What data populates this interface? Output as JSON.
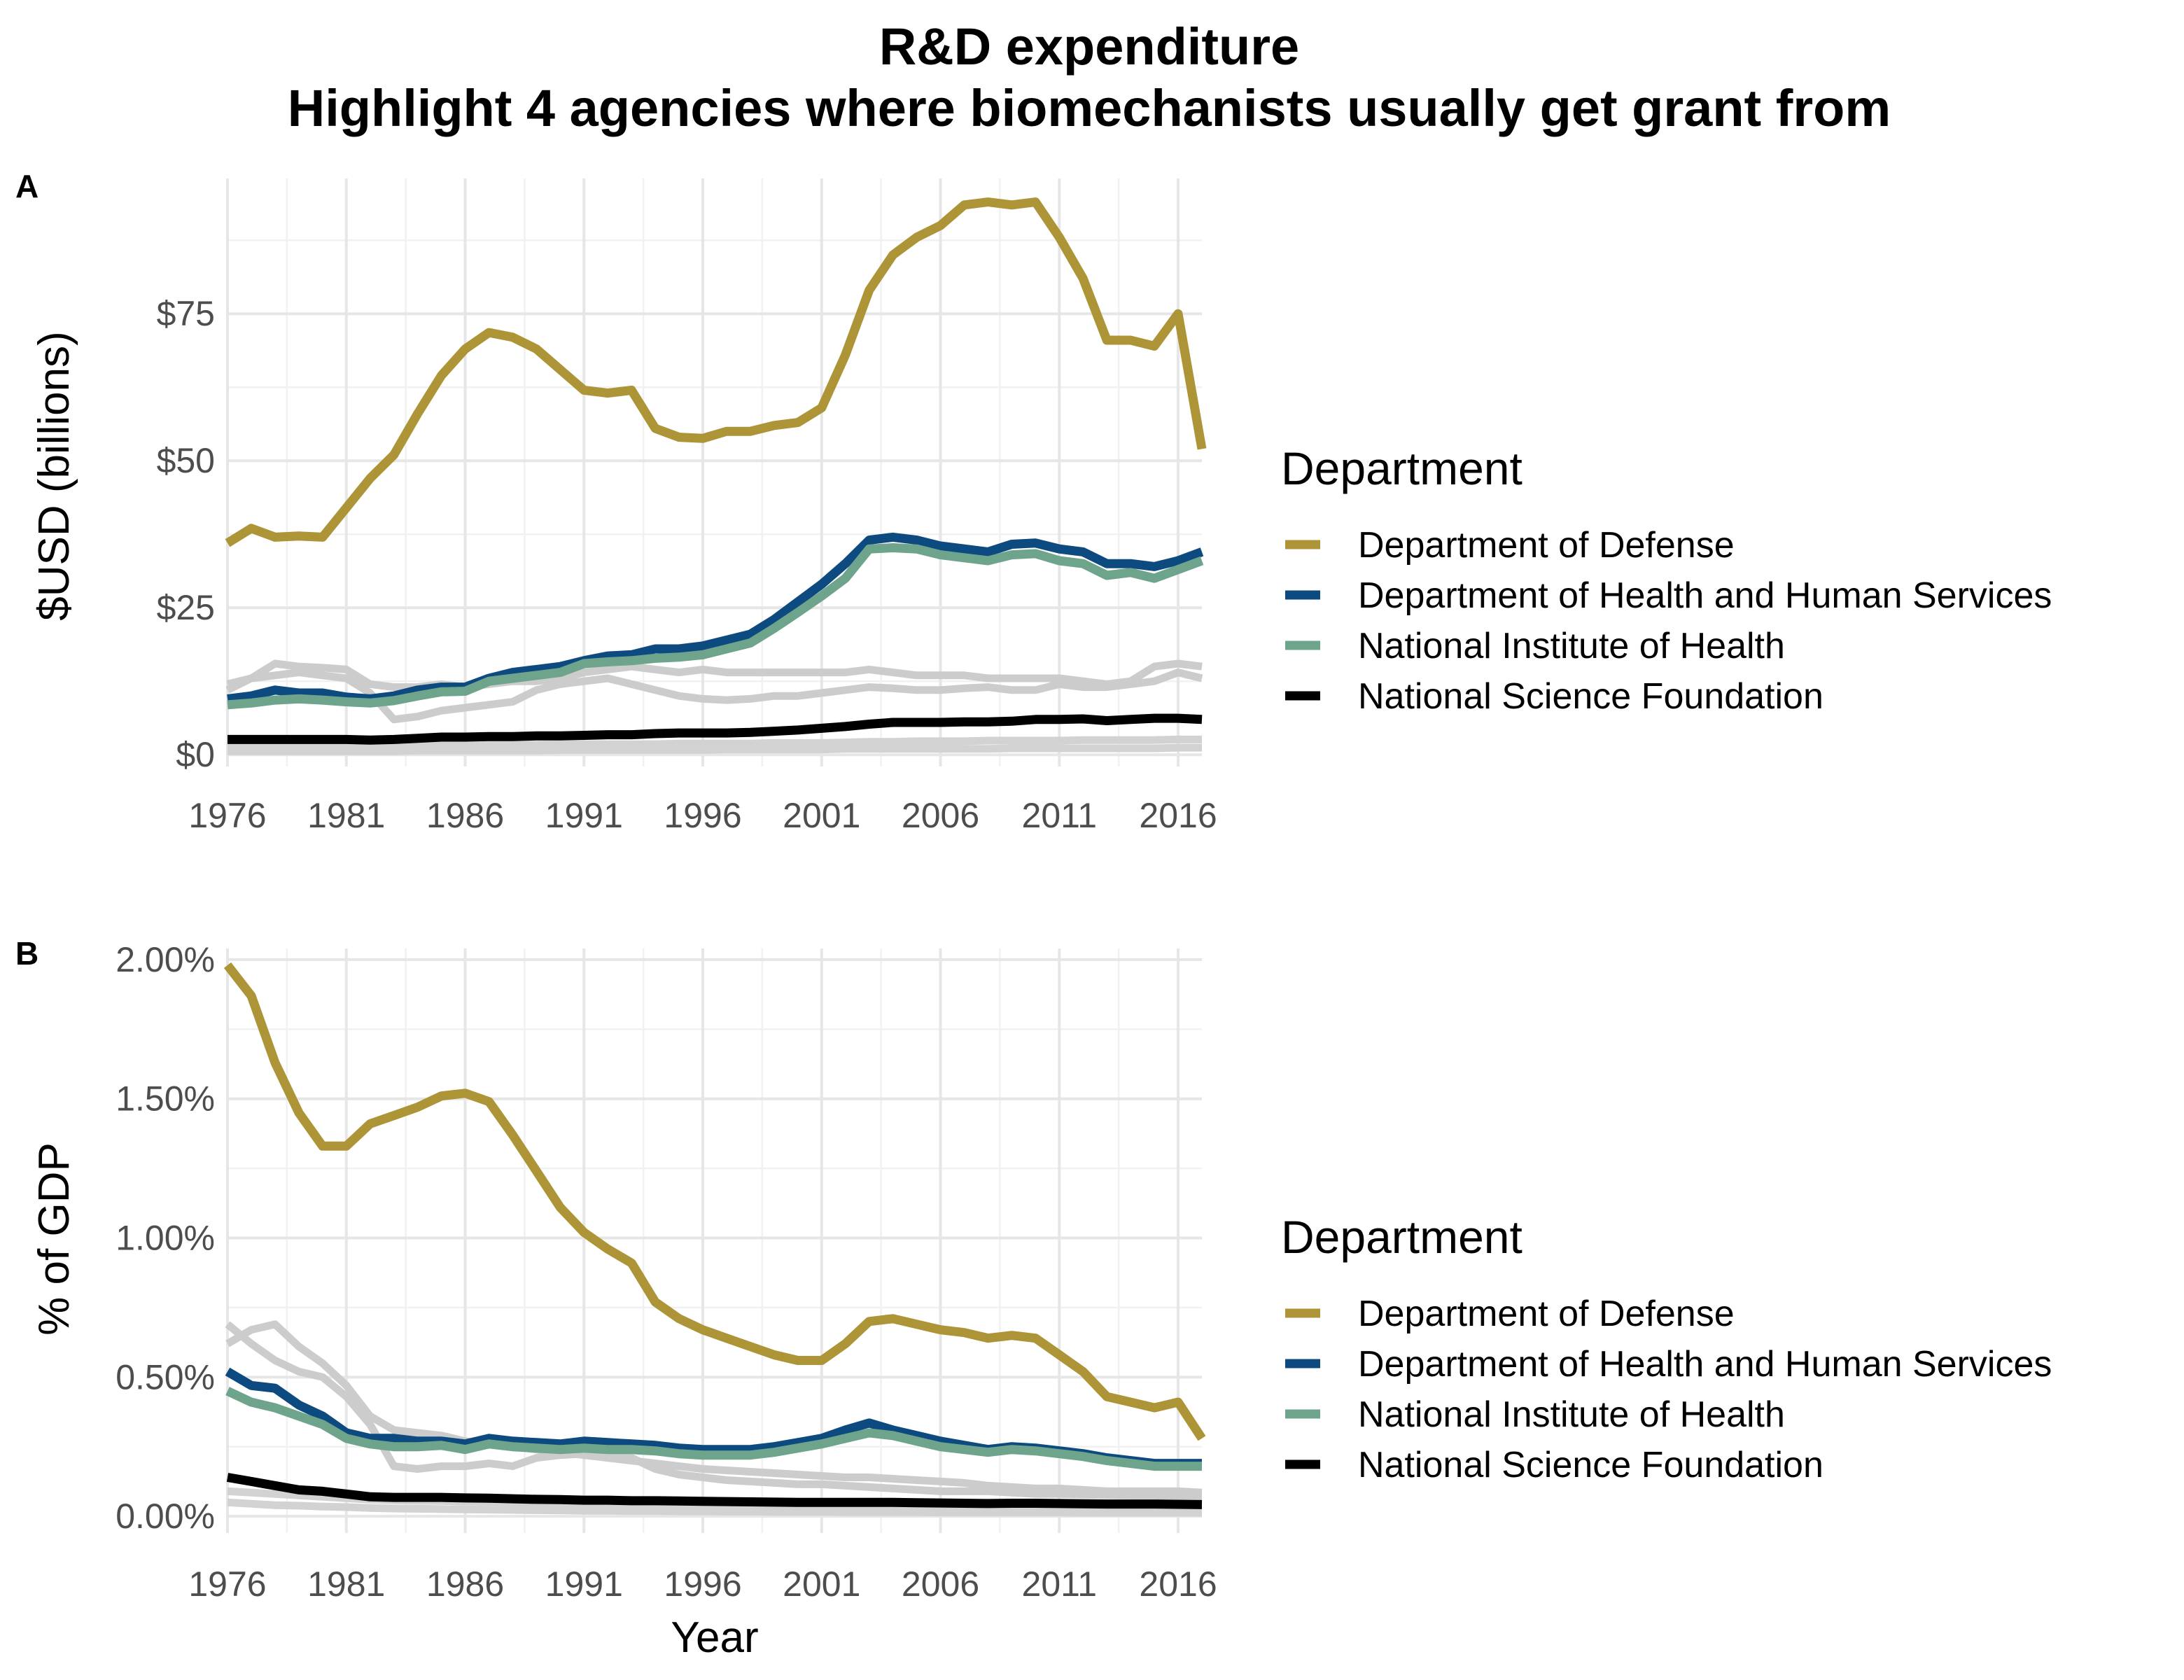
{
  "title": "R&D expenditure",
  "subtitle": "Highlight 4 agencies where biomechanists usually get grant from",
  "chart_data": [
    {
      "panel_tag": "A",
      "type": "line",
      "xlabel": "",
      "ylabel": "$USD (billions)",
      "xlim": [
        1976,
        2017
      ],
      "ylim": [
        -2,
        98
      ],
      "xticks": [
        1976,
        1981,
        1986,
        1991,
        1996,
        2001,
        2006,
        2011,
        2016
      ],
      "yticks": [
        0,
        25,
        50,
        75
      ],
      "yticklabels": [
        "$0",
        "$25",
        "$50",
        "$75"
      ],
      "legend_title": "Department",
      "legend_position": "right",
      "grid": true,
      "x": [
        1976,
        1977,
        1978,
        1979,
        1980,
        1981,
        1982,
        1983,
        1984,
        1985,
        1986,
        1987,
        1988,
        1989,
        1990,
        1991,
        1992,
        1993,
        1994,
        1995,
        1996,
        1997,
        1998,
        1999,
        2000,
        2001,
        2002,
        2003,
        2004,
        2005,
        2006,
        2007,
        2008,
        2009,
        2010,
        2011,
        2012,
        2013,
        2014,
        2015,
        2016,
        2017
      ],
      "series": [
        {
          "name": "Department of Defense",
          "color": "#AD9436",
          "highlight": true,
          "values": [
            36,
            38.5,
            37,
            37.2,
            37,
            42,
            47,
            51,
            58,
            64.5,
            69,
            71.8,
            71,
            69,
            65.5,
            62,
            61.5,
            62,
            55.5,
            54,
            53.8,
            55,
            55,
            56,
            56.5,
            59,
            68,
            79,
            85,
            88,
            90,
            93.5,
            94,
            93.5,
            94,
            88,
            81,
            70.5,
            70.5,
            69.5,
            75,
            52
          ]
        },
        {
          "name": "Department of Health and Human Services",
          "color": "#0C4A7F",
          "highlight": true,
          "values": [
            9.5,
            10,
            11,
            10.5,
            10.5,
            9.8,
            9.5,
            10,
            11,
            11.5,
            11.5,
            13,
            14,
            14.5,
            15,
            16,
            16.8,
            17,
            18,
            18,
            18.5,
            19.5,
            20.5,
            23,
            26,
            29,
            32.5,
            36.5,
            37,
            36.5,
            35.5,
            35,
            34.5,
            35.8,
            36,
            35,
            34.5,
            32.5,
            32.5,
            32,
            33,
            34.5
          ]
        },
        {
          "name": "National Institute of Health",
          "color": "#6FA48C",
          "highlight": true,
          "values": [
            8.5,
            8.8,
            9.3,
            9.5,
            9.3,
            9,
            8.8,
            9.2,
            10,
            10.7,
            10.8,
            12.5,
            13,
            13.5,
            14,
            15.5,
            15.8,
            16,
            16.4,
            16.6,
            17,
            18,
            19,
            21.5,
            24.2,
            27,
            30,
            35,
            35.2,
            35,
            34,
            33.5,
            33,
            34,
            34.2,
            33,
            32.5,
            30.5,
            31,
            30,
            31.5,
            33
          ]
        },
        {
          "name": "National Science Foundation",
          "color": "#000000",
          "highlight": true,
          "values": [
            2.6,
            2.6,
            2.6,
            2.6,
            2.6,
            2.6,
            2.5,
            2.6,
            2.8,
            3,
            3,
            3.1,
            3.1,
            3.2,
            3.2,
            3.3,
            3.4,
            3.4,
            3.6,
            3.7,
            3.7,
            3.7,
            3.8,
            4,
            4.2,
            4.5,
            4.8,
            5.2,
            5.5,
            5.5,
            5.5,
            5.6,
            5.6,
            5.7,
            6,
            6,
            6.1,
            5.8,
            6,
            6.2,
            6.2,
            6
          ]
        },
        {
          "name": "",
          "color": "#cccccc",
          "highlight": false,
          "values": [
            11,
            13,
            15.5,
            15,
            14.8,
            14.5,
            12,
            11.5,
            11.5,
            12,
            11.5,
            12,
            12.5,
            12.5,
            13,
            14,
            14.5,
            15,
            14.5,
            14,
            14.5,
            14,
            14,
            14,
            14,
            14,
            14,
            14.5,
            14,
            13.5,
            13.5,
            13.5,
            13,
            13,
            13,
            13,
            12.5,
            12,
            12.5,
            15,
            15.5,
            15
          ]
        },
        {
          "name": "",
          "color": "#cccccc",
          "highlight": false,
          "values": [
            12,
            13,
            13.5,
            14,
            13.5,
            13,
            10.5,
            6,
            6.5,
            7.5,
            8,
            8.5,
            9,
            11,
            12,
            12.5,
            13,
            12,
            11,
            10,
            9.5,
            9.3,
            9.5,
            10,
            10,
            10.5,
            11,
            11.5,
            11.3,
            11,
            11,
            11.3,
            11.5,
            11,
            11,
            12,
            11.5,
            11.5,
            12,
            12.5,
            14,
            13
          ]
        },
        {
          "name": "",
          "color": "#d2d2d2",
          "highlight": false,
          "values": [
            1.5,
            1.5,
            1.5,
            1.5,
            1.5,
            1.5,
            1.5,
            1.5,
            1.6,
            1.6,
            1.6,
            1.7,
            1.7,
            1.7,
            1.8,
            1.8,
            1.8,
            1.8,
            1.8,
            1.9,
            1.9,
            1.9,
            1.9,
            2,
            2,
            2,
            2.1,
            2.2,
            2.2,
            2.3,
            2.3,
            2.3,
            2.4,
            2.4,
            2.4,
            2.4,
            2.5,
            2.5,
            2.5,
            2.5,
            2.6,
            2.6
          ]
        },
        {
          "name": "",
          "color": "#d2d2d2",
          "highlight": false,
          "values": [
            0.6,
            0.6,
            0.6,
            0.6,
            0.6,
            0.6,
            0.6,
            0.6,
            0.7,
            0.7,
            0.7,
            0.7,
            0.7,
            0.7,
            0.8,
            0.8,
            0.8,
            0.8,
            0.8,
            0.8,
            0.8,
            0.9,
            0.9,
            0.9,
            0.9,
            0.9,
            1,
            1,
            1,
            1,
            1,
            1,
            1,
            1.1,
            1.1,
            1.1,
            1.1,
            1.1,
            1.1,
            1.1,
            1.2,
            1.2
          ]
        }
      ]
    },
    {
      "panel_tag": "B",
      "type": "line",
      "xlabel": "Year",
      "ylabel": "% of GDP",
      "xlim": [
        1976,
        2017
      ],
      "ylim": [
        -0.06,
        2.04
      ],
      "xticks": [
        1976,
        1981,
        1986,
        1991,
        1996,
        2001,
        2006,
        2011,
        2016
      ],
      "yticks": [
        0,
        0.5,
        1.0,
        1.5,
        2.0
      ],
      "yticklabels": [
        "0.00%",
        "0.50%",
        "1.00%",
        "1.50%",
        "2.00%"
      ],
      "legend_title": "Department",
      "legend_position": "right",
      "grid": true,
      "x": [
        1976,
        1977,
        1978,
        1979,
        1980,
        1981,
        1982,
        1983,
        1984,
        1985,
        1986,
        1987,
        1988,
        1989,
        1990,
        1991,
        1992,
        1993,
        1994,
        1995,
        1996,
        1997,
        1998,
        1999,
        2000,
        2001,
        2002,
        2003,
        2004,
        2005,
        2006,
        2007,
        2008,
        2009,
        2010,
        2011,
        2012,
        2013,
        2014,
        2015,
        2016,
        2017
      ],
      "series": [
        {
          "name": "Department of Defense",
          "color": "#AD9436",
          "highlight": true,
          "values": [
            1.98,
            1.87,
            1.63,
            1.45,
            1.33,
            1.33,
            1.41,
            1.44,
            1.47,
            1.51,
            1.52,
            1.49,
            1.37,
            1.24,
            1.11,
            1.02,
            0.96,
            0.91,
            0.77,
            0.71,
            0.67,
            0.64,
            0.61,
            0.58,
            0.56,
            0.56,
            0.62,
            0.7,
            0.71,
            0.69,
            0.67,
            0.66,
            0.64,
            0.65,
            0.64,
            0.58,
            0.52,
            0.43,
            0.41,
            0.39,
            0.41,
            0.28
          ]
        },
        {
          "name": "Department of Health and Human Services",
          "color": "#0C4A7F",
          "highlight": true,
          "values": [
            0.52,
            0.47,
            0.46,
            0.4,
            0.36,
            0.3,
            0.28,
            0.28,
            0.27,
            0.27,
            0.26,
            0.28,
            0.27,
            0.265,
            0.26,
            0.27,
            0.265,
            0.26,
            0.255,
            0.245,
            0.24,
            0.24,
            0.24,
            0.25,
            0.265,
            0.28,
            0.31,
            0.335,
            0.31,
            0.29,
            0.27,
            0.255,
            0.24,
            0.25,
            0.245,
            0.235,
            0.225,
            0.21,
            0.2,
            0.19,
            0.19,
            0.19
          ]
        },
        {
          "name": "National Institute of Health",
          "color": "#6FA48C",
          "highlight": true,
          "values": [
            0.45,
            0.41,
            0.39,
            0.36,
            0.33,
            0.28,
            0.26,
            0.25,
            0.25,
            0.255,
            0.24,
            0.26,
            0.25,
            0.245,
            0.24,
            0.245,
            0.24,
            0.24,
            0.235,
            0.225,
            0.22,
            0.22,
            0.22,
            0.23,
            0.245,
            0.26,
            0.28,
            0.3,
            0.29,
            0.27,
            0.25,
            0.24,
            0.23,
            0.24,
            0.235,
            0.225,
            0.215,
            0.2,
            0.19,
            0.18,
            0.18,
            0.18
          ]
        },
        {
          "name": "National Science Foundation",
          "color": "#000000",
          "highlight": true,
          "values": [
            0.14,
            0.125,
            0.11,
            0.095,
            0.09,
            0.08,
            0.07,
            0.068,
            0.068,
            0.068,
            0.066,
            0.065,
            0.063,
            0.061,
            0.06,
            0.058,
            0.058,
            0.056,
            0.056,
            0.055,
            0.054,
            0.053,
            0.052,
            0.051,
            0.05,
            0.05,
            0.05,
            0.05,
            0.05,
            0.049,
            0.048,
            0.047,
            0.046,
            0.047,
            0.047,
            0.046,
            0.045,
            0.044,
            0.044,
            0.044,
            0.043,
            0.042
          ]
        },
        {
          "name": "",
          "color": "#cccccc",
          "highlight": false,
          "values": [
            0.62,
            0.67,
            0.69,
            0.61,
            0.55,
            0.47,
            0.36,
            0.31,
            0.3,
            0.29,
            0.27,
            0.26,
            0.25,
            0.24,
            0.23,
            0.22,
            0.21,
            0.2,
            0.19,
            0.18,
            0.17,
            0.165,
            0.16,
            0.155,
            0.15,
            0.145,
            0.14,
            0.14,
            0.135,
            0.13,
            0.125,
            0.12,
            0.11,
            0.105,
            0.1,
            0.1,
            0.095,
            0.09,
            0.09,
            0.09,
            0.09,
            0.085
          ]
        },
        {
          "name": "",
          "color": "#cccccc",
          "highlight": false,
          "values": [
            0.69,
            0.62,
            0.56,
            0.52,
            0.5,
            0.43,
            0.33,
            0.18,
            0.17,
            0.18,
            0.18,
            0.19,
            0.18,
            0.21,
            0.22,
            0.225,
            0.22,
            0.21,
            0.17,
            0.15,
            0.14,
            0.13,
            0.125,
            0.12,
            0.115,
            0.115,
            0.11,
            0.105,
            0.1,
            0.095,
            0.09,
            0.09,
            0.09,
            0.085,
            0.08,
            0.08,
            0.078,
            0.076,
            0.075,
            0.075,
            0.074,
            0.072
          ]
        },
        {
          "name": "",
          "color": "#d2d2d2",
          "highlight": false,
          "values": [
            0.09,
            0.085,
            0.08,
            0.075,
            0.07,
            0.065,
            0.06,
            0.058,
            0.056,
            0.055,
            0.053,
            0.052,
            0.05,
            0.048,
            0.046,
            0.045,
            0.044,
            0.043,
            0.042,
            0.041,
            0.04,
            0.039,
            0.038,
            0.037,
            0.036,
            0.035,
            0.035,
            0.034,
            0.034,
            0.033,
            0.033,
            0.032,
            0.032,
            0.031,
            0.031,
            0.031,
            0.03,
            0.03,
            0.03,
            0.03,
            0.03,
            0.03
          ]
        },
        {
          "name": "",
          "color": "#d2d2d2",
          "highlight": false,
          "values": [
            0.05,
            0.045,
            0.04,
            0.038,
            0.035,
            0.033,
            0.03,
            0.028,
            0.027,
            0.026,
            0.025,
            0.024,
            0.023,
            0.022,
            0.021,
            0.02,
            0.02,
            0.019,
            0.019,
            0.018,
            0.018,
            0.017,
            0.017,
            0.016,
            0.016,
            0.016,
            0.015,
            0.015,
            0.015,
            0.015,
            0.014,
            0.014,
            0.014,
            0.014,
            0.014,
            0.014,
            0.013,
            0.013,
            0.013,
            0.013,
            0.013,
            0.013
          ]
        }
      ]
    }
  ]
}
